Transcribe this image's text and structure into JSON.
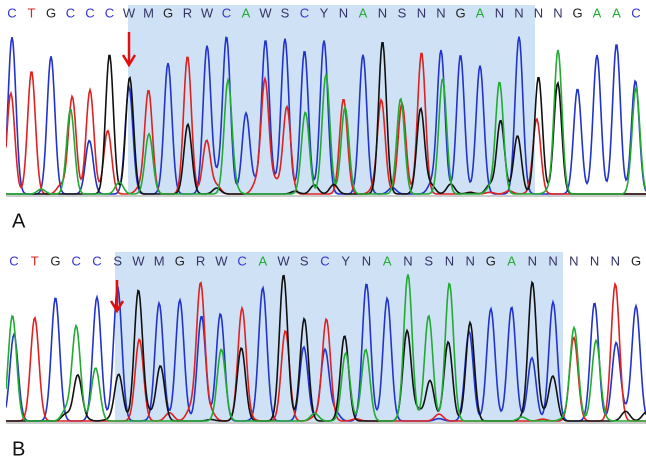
{
  "panels": [
    {
      "label": "A",
      "bases": [
        {
          "base": "C",
          "color": "#3333cc"
        },
        {
          "base": "T",
          "color": "#dd2222"
        },
        {
          "base": "G",
          "color": "#222222"
        },
        {
          "base": "C",
          "color": "#3333cc"
        },
        {
          "base": "C",
          "color": "#3333cc"
        },
        {
          "base": "C",
          "color": "#3333cc"
        },
        {
          "base": "W",
          "color": "#333366"
        },
        {
          "base": "M",
          "color": "#333366"
        },
        {
          "base": "G",
          "color": "#222222"
        },
        {
          "base": "R",
          "color": "#333366"
        },
        {
          "base": "W",
          "color": "#333366"
        },
        {
          "base": "C",
          "color": "#3333cc"
        },
        {
          "base": "A",
          "color": "#22aa33"
        },
        {
          "base": "W",
          "color": "#333366"
        },
        {
          "base": "S",
          "color": "#333366"
        },
        {
          "base": "C",
          "color": "#3333cc"
        },
        {
          "base": "Y",
          "color": "#333366"
        },
        {
          "base": "N",
          "color": "#333366"
        },
        {
          "base": "A",
          "color": "#22aa33"
        },
        {
          "base": "N",
          "color": "#333366"
        },
        {
          "base": "S",
          "color": "#333366"
        },
        {
          "base": "N",
          "color": "#333366"
        },
        {
          "base": "N",
          "color": "#333366"
        },
        {
          "base": "G",
          "color": "#222222"
        },
        {
          "base": "A",
          "color": "#22aa33"
        },
        {
          "base": "N",
          "color": "#333366"
        },
        {
          "base": "N",
          "color": "#333366"
        },
        {
          "base": "N",
          "color": "#333366"
        },
        {
          "base": "N",
          "color": "#333366"
        },
        {
          "base": "G",
          "color": "#222222"
        },
        {
          "base": "A",
          "color": "#22aa33"
        },
        {
          "base": "A",
          "color": "#22aa33"
        },
        {
          "base": "C",
          "color": "#3333cc"
        }
      ]
    },
    {
      "label": "B",
      "bases": [
        {
          "base": "C",
          "color": "#3333cc"
        },
        {
          "base": "T",
          "color": "#dd2222"
        },
        {
          "base": "G",
          "color": "#222222"
        },
        {
          "base": "C",
          "color": "#3333cc"
        },
        {
          "base": "C",
          "color": "#3333cc"
        },
        {
          "base": "S",
          "color": "#333366"
        },
        {
          "base": "W",
          "color": "#333366"
        },
        {
          "base": "M",
          "color": "#333366"
        },
        {
          "base": "G",
          "color": "#222222"
        },
        {
          "base": "R",
          "color": "#333366"
        },
        {
          "base": "W",
          "color": "#333366"
        },
        {
          "base": "C",
          "color": "#3333cc"
        },
        {
          "base": "A",
          "color": "#22aa33"
        },
        {
          "base": "W",
          "color": "#333366"
        },
        {
          "base": "S",
          "color": "#333366"
        },
        {
          "base": "C",
          "color": "#3333cc"
        },
        {
          "base": "Y",
          "color": "#333366"
        },
        {
          "base": "N",
          "color": "#333366"
        },
        {
          "base": "A",
          "color": "#22aa33"
        },
        {
          "base": "N",
          "color": "#333366"
        },
        {
          "base": "S",
          "color": "#333366"
        },
        {
          "base": "N",
          "color": "#333366"
        },
        {
          "base": "N",
          "color": "#333366"
        },
        {
          "base": "G",
          "color": "#222222"
        },
        {
          "base": "A",
          "color": "#22aa33"
        },
        {
          "base": "N",
          "color": "#333366"
        },
        {
          "base": "N",
          "color": "#333366"
        },
        {
          "base": "N",
          "color": "#333366"
        },
        {
          "base": "N",
          "color": "#333366"
        },
        {
          "base": "N",
          "color": "#333366"
        },
        {
          "base": "G",
          "color": "#222222"
        }
      ]
    }
  ]
}
